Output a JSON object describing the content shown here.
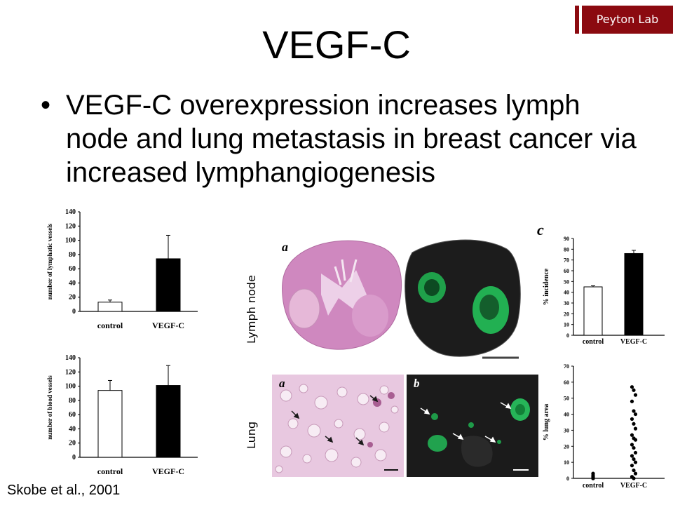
{
  "badge": {
    "label": "Peyton Lab",
    "color": "#8b0a10"
  },
  "slide": {
    "title": "VEGF-C",
    "bullet": "•",
    "text": "VEGF-C overexpression increases lymph node and lung metastasis in breast cancer via increased lymphangiogenesis",
    "citation": "Skobe et al., 2001"
  },
  "photo_labels": {
    "lymph_node": "Lymph node",
    "lung": "Lung",
    "panel_a_top": "a",
    "panel_a_bottom": "a",
    "panel_b_bottom": "b",
    "panel_c": "c"
  },
  "chart_data": [
    {
      "type": "bar",
      "categories": [
        "control",
        "VEGF-C"
      ],
      "values": [
        13,
        74
      ],
      "errors": [
        3,
        33
      ],
      "colors": [
        "#ffffff",
        "#000000"
      ],
      "ylabel": "number of lymphatic vessels",
      "ylim": [
        0,
        140
      ],
      "yticks": [
        0,
        20,
        40,
        60,
        80,
        100,
        120,
        140
      ]
    },
    {
      "type": "bar",
      "categories": [
        "control",
        "VEGF-C"
      ],
      "values": [
        94,
        101
      ],
      "errors": [
        14,
        28
      ],
      "colors": [
        "#ffffff",
        "#000000"
      ],
      "ylabel": "number of blood vessels",
      "ylim": [
        0,
        140
      ],
      "yticks": [
        0,
        20,
        40,
        60,
        80,
        100,
        120,
        140
      ]
    },
    {
      "type": "bar",
      "categories": [
        "control",
        "VEGF-C"
      ],
      "values": [
        45,
        76
      ],
      "errors": [
        1,
        3
      ],
      "colors": [
        "#ffffff",
        "#000000"
      ],
      "ylabel": "% incidence",
      "ylim": [
        0,
        90
      ],
      "yticks": [
        0,
        10,
        20,
        30,
        40,
        50,
        60,
        70,
        80,
        90
      ]
    },
    {
      "type": "scatter",
      "categories": [
        "control",
        "VEGF-C"
      ],
      "ylabel": "% lung area",
      "ylim": [
        0,
        70
      ],
      "yticks": [
        0,
        10,
        20,
        30,
        40,
        50,
        60,
        70
      ],
      "series": [
        {
          "values": [
            0,
            0,
            0,
            0.5,
            1,
            2,
            3
          ]
        },
        {
          "values": [
            57,
            55,
            52,
            48,
            42,
            40,
            37,
            34,
            31,
            27,
            25,
            24,
            21,
            19,
            16,
            14,
            12,
            10,
            8,
            5,
            3,
            1,
            0
          ]
        }
      ]
    }
  ]
}
